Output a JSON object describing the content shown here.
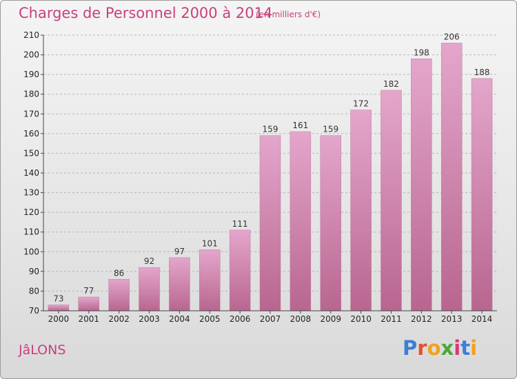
{
  "chart_data": {
    "type": "bar",
    "title": "Charges de Personnel 2000 à 2014",
    "subtitle": "(en milliers d'€)",
    "categories": [
      "2000",
      "2001",
      "2002",
      "2003",
      "2004",
      "2005",
      "2006",
      "2007",
      "2008",
      "2009",
      "2010",
      "2011",
      "2012",
      "2013",
      "2014"
    ],
    "values": [
      73,
      77,
      86,
      92,
      97,
      101,
      111,
      159,
      161,
      159,
      172,
      182,
      198,
      206,
      188
    ],
    "ylim": [
      70,
      210
    ],
    "yticks": [
      70,
      80,
      90,
      100,
      110,
      120,
      130,
      140,
      150,
      160,
      170,
      180,
      190,
      200,
      210
    ],
    "xlabel": "",
    "ylabel": "",
    "grid": "horizontal",
    "bar_color": "#d98fb9"
  },
  "footer": {
    "commune": "JâLONS",
    "logo": {
      "letters": [
        "P",
        "r",
        "o",
        "x",
        "i",
        "t",
        "i"
      ]
    }
  },
  "colors": {
    "accent": "#c8407e",
    "bar": "#d98fb9",
    "grid": "#b5b5b5"
  }
}
